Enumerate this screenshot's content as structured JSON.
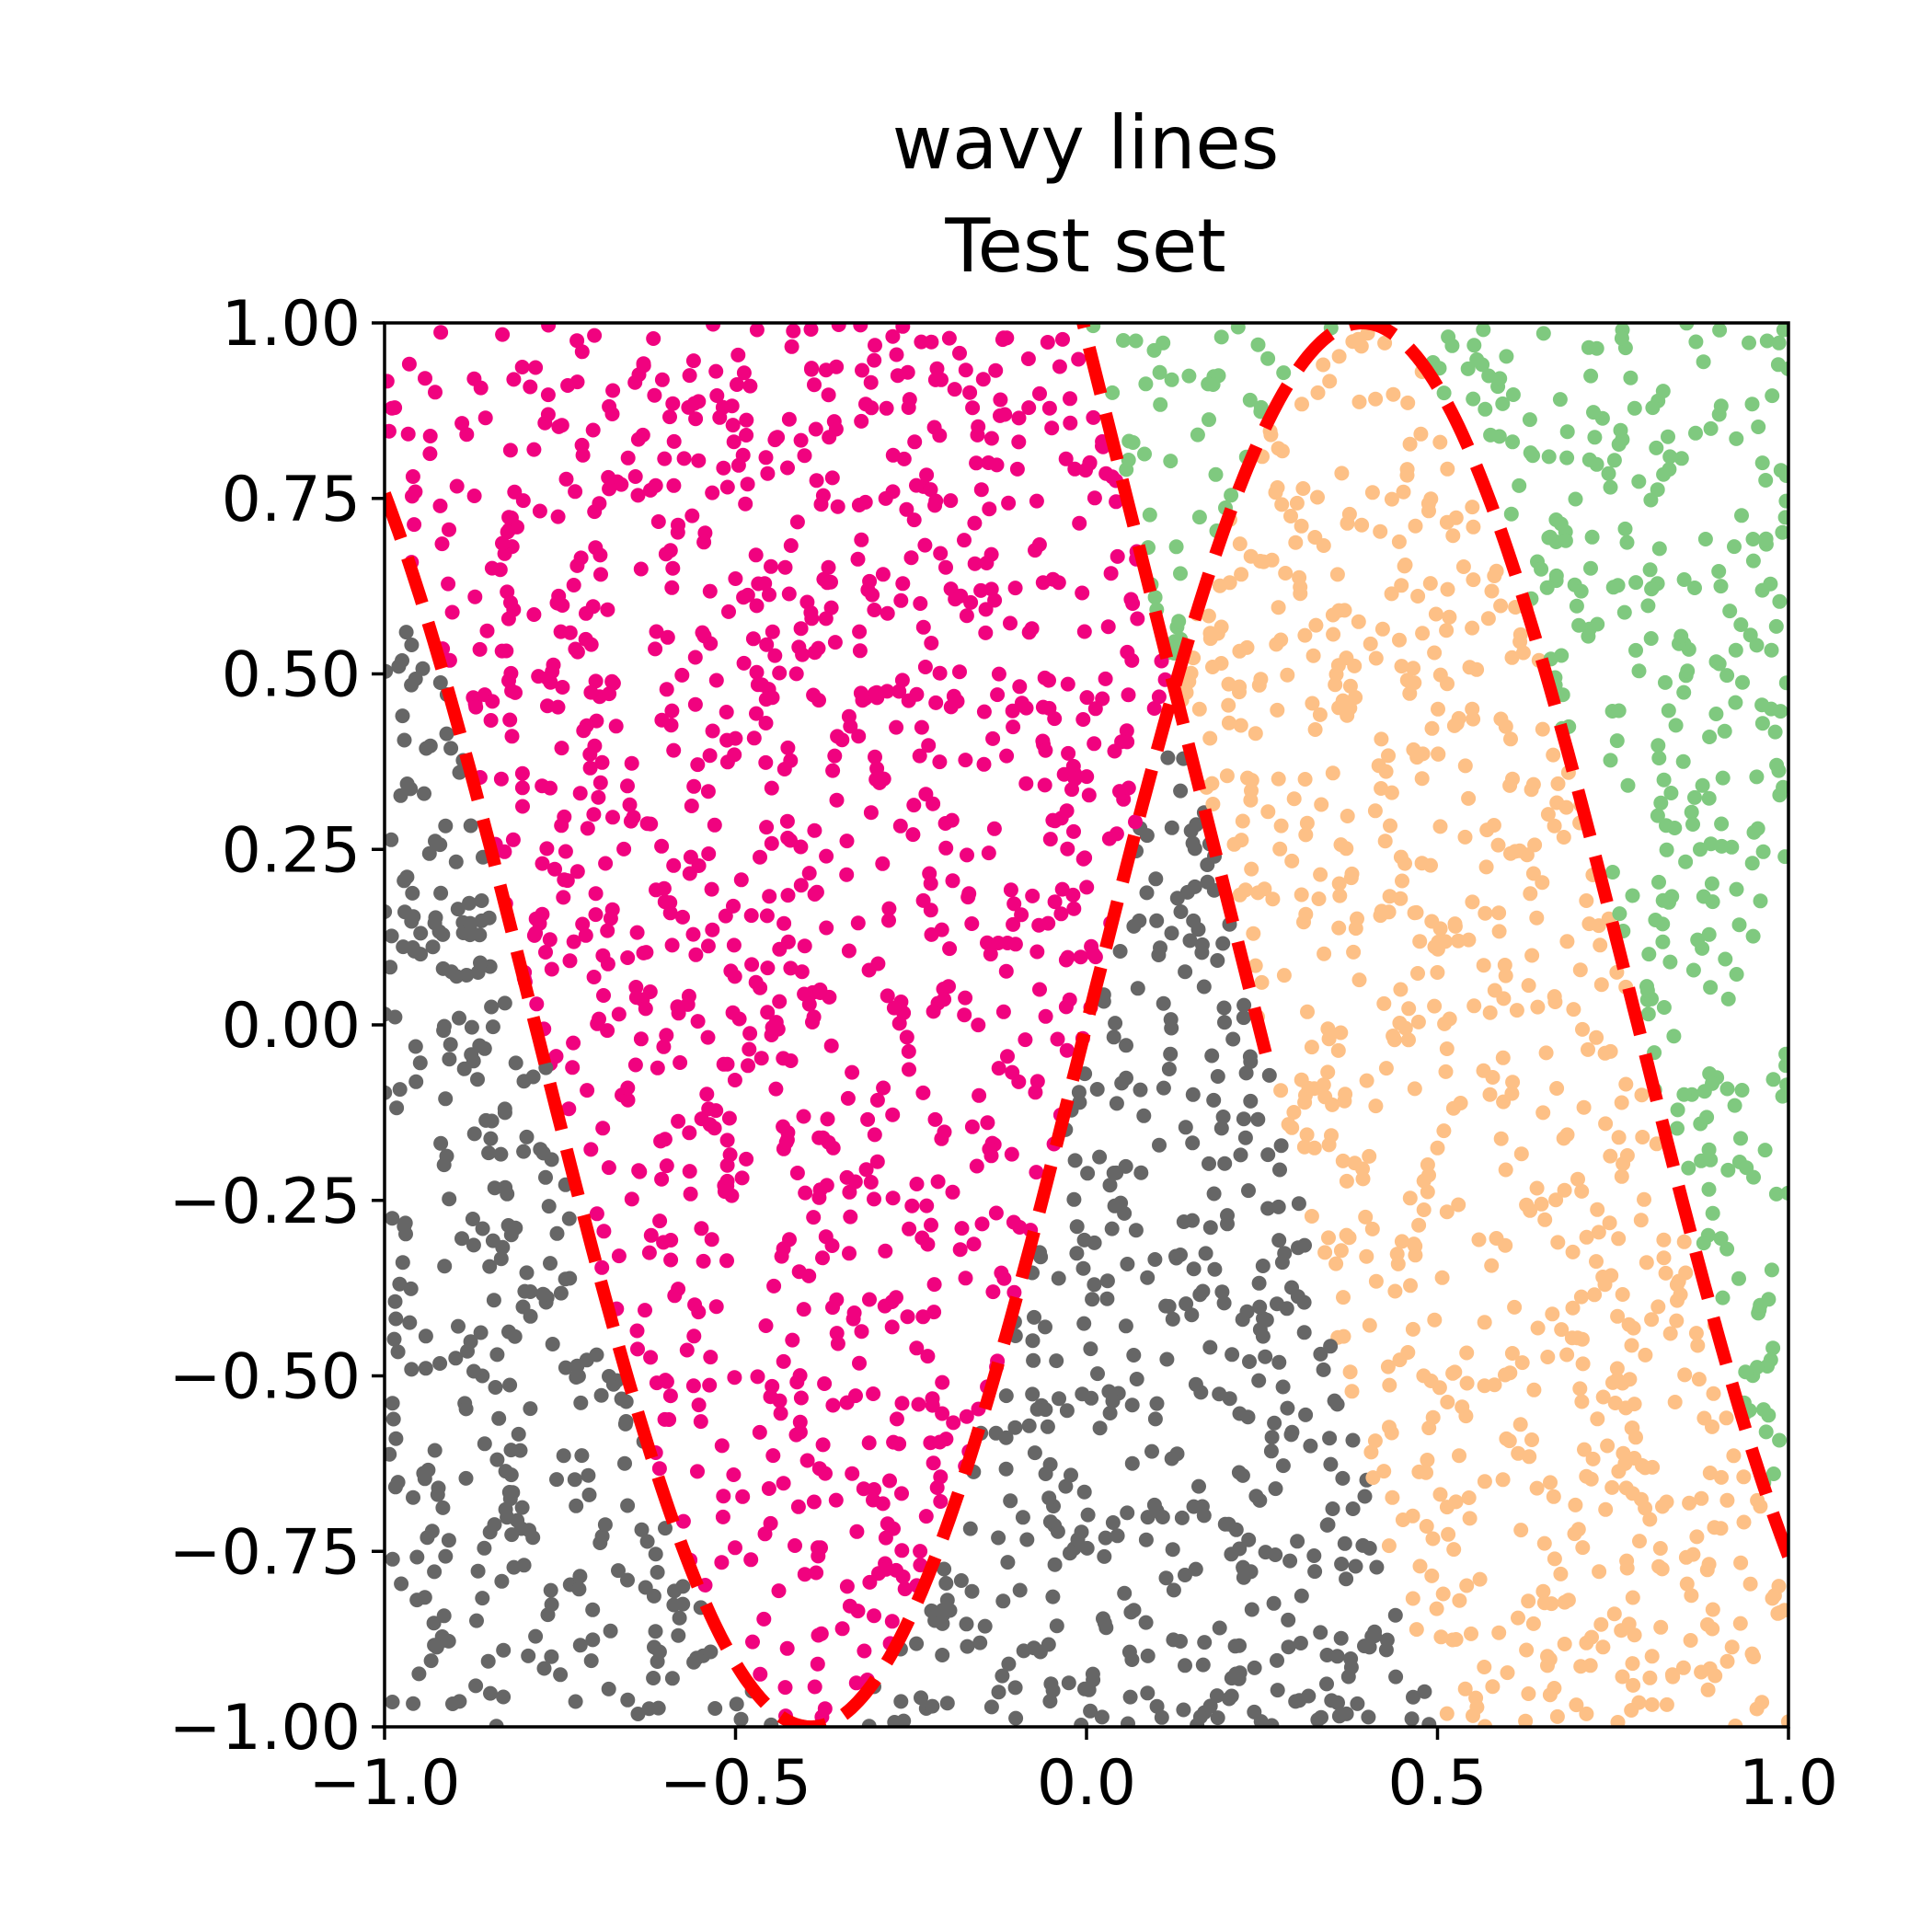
{
  "chart_data": {
    "type": "scatter",
    "title": "wavy lines",
    "subtitle": "Test set",
    "xlim": [
      -1.0,
      1.0
    ],
    "ylim": [
      -1.0,
      1.0
    ],
    "x_ticks": [
      -1.0,
      -0.5,
      0.0,
      0.5,
      1.0
    ],
    "x_tick_labels": [
      "−1.0",
      "−0.5",
      "0.0",
      "0.5",
      "1.0"
    ],
    "y_ticks": [
      -1.0,
      -0.75,
      -0.5,
      -0.25,
      0.0,
      0.25,
      0.5,
      0.75,
      1.0
    ],
    "y_tick_labels": [
      "−1.00",
      "−0.75",
      "−0.50",
      "−0.25",
      "0.00",
      "0.25",
      "0.50",
      "0.75",
      "1.00"
    ],
    "grid": false,
    "legend": "none",
    "points_per_class": 750,
    "classes": [
      {
        "color": "#7fc97f",
        "region": "y above first curve and above second curve"
      },
      {
        "color": "#fdc086",
        "region": "y below first curve and above second curve"
      },
      {
        "color": "#666666",
        "region": "y below first curve and below second curve"
      },
      {
        "color": "#f0027f",
        "region": "y above first curve and below second curve"
      }
    ],
    "boundary_curves": [
      {
        "formula": "y = sin(4x)",
        "x_range": [
          -1.0,
          1.0
        ],
        "color": "#ff0000",
        "style": "dashed"
      },
      {
        "formula": "y = -4(x - 0.245)",
        "x_range": [
          -0.255,
          0.255
        ],
        "color": "#ff0000",
        "style": "dashed"
      }
    ]
  }
}
